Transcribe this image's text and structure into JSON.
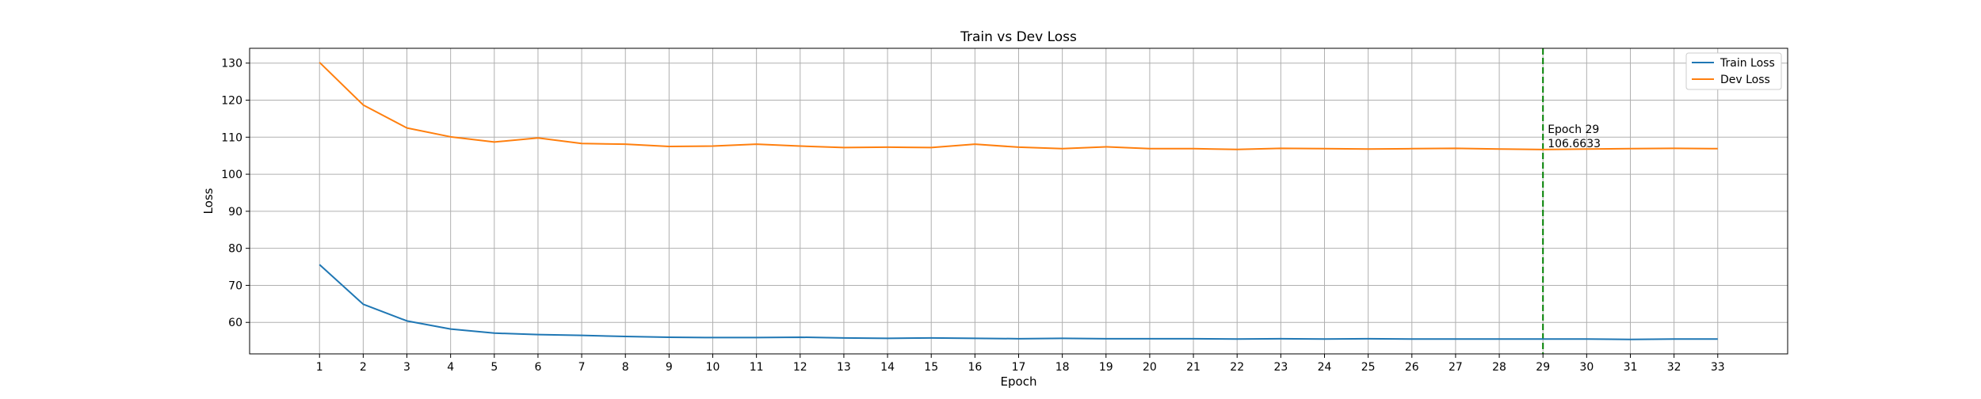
{
  "chart_data": {
    "type": "line",
    "title": "Train vs Dev Loss",
    "xlabel": "Epoch",
    "ylabel": "Loss",
    "x": [
      1,
      2,
      3,
      4,
      5,
      6,
      7,
      8,
      9,
      10,
      11,
      12,
      13,
      14,
      15,
      16,
      17,
      18,
      19,
      20,
      21,
      22,
      23,
      24,
      25,
      26,
      27,
      28,
      29,
      30,
      31,
      32,
      33
    ],
    "xlim": [
      -0.6,
      34.6
    ],
    "ylim": [
      51.5,
      134
    ],
    "yticks": [
      60,
      70,
      80,
      90,
      100,
      110,
      120,
      130
    ],
    "grid": true,
    "legend_position": "top-right",
    "series": [
      {
        "name": "Train Loss",
        "color": "#1f77b4",
        "values": [
          75.6,
          64.9,
          60.4,
          58.2,
          57.1,
          56.7,
          56.5,
          56.2,
          56.0,
          55.9,
          55.9,
          56.0,
          55.8,
          55.7,
          55.8,
          55.7,
          55.6,
          55.7,
          55.6,
          55.6,
          55.6,
          55.5,
          55.6,
          55.5,
          55.6,
          55.5,
          55.5,
          55.5,
          55.5,
          55.5,
          55.4,
          55.5,
          55.5
        ]
      },
      {
        "name": "Dev Loss",
        "color": "#ff7f0e",
        "values": [
          130.2,
          118.7,
          112.5,
          110.1,
          108.7,
          109.8,
          108.3,
          108.1,
          107.5,
          107.6,
          108.1,
          107.6,
          107.2,
          107.3,
          107.2,
          108.1,
          107.3,
          106.9,
          107.4,
          106.9,
          106.9,
          106.7,
          107.0,
          106.9,
          106.8,
          106.9,
          107.0,
          106.8,
          106.6633,
          106.8,
          106.9,
          107.0,
          106.9
        ]
      }
    ],
    "vline": {
      "x": 29,
      "color": "#008000",
      "style": "dashed"
    },
    "annotation": {
      "line1": "Epoch 29",
      "line2": "106.6633"
    }
  }
}
